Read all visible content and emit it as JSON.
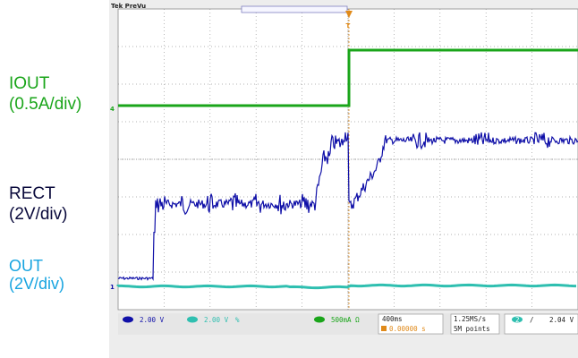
{
  "labels": {
    "iout": {
      "name": "IOUT",
      "scale": "(0.5A/div)",
      "color": "#1aa51a"
    },
    "rect": {
      "name": "RECT",
      "scale": "(2V/div)",
      "color": "#0a0a3c"
    },
    "out": {
      "name": "OUT",
      "scale": "(2V/div)",
      "color": "#17a4e0"
    }
  },
  "scope": {
    "brand": "Tek PreVu",
    "trigger_marker": "T",
    "channel_markers": {
      "ch4": "4",
      "ch1": "1"
    },
    "readouts": {
      "ch1_scale": "2.00 V",
      "ch2_scale": "2.00 V",
      "ch2_suffix": "%",
      "ch4_scale": "500mA Ω",
      "timebase": "400ms",
      "position": "0.00000 s",
      "sample_rate": "1.25MS/s",
      "record_length": "5M points",
      "trigger_source": "2",
      "trigger_slope": "/",
      "trigger_level": "2.04 V"
    },
    "colors": {
      "ch1": "#1010a8",
      "ch2": "#2fbfb0",
      "ch4": "#1aa51a",
      "graticule": "#9a9a9a",
      "trigger": "#e08a1a"
    }
  }
}
